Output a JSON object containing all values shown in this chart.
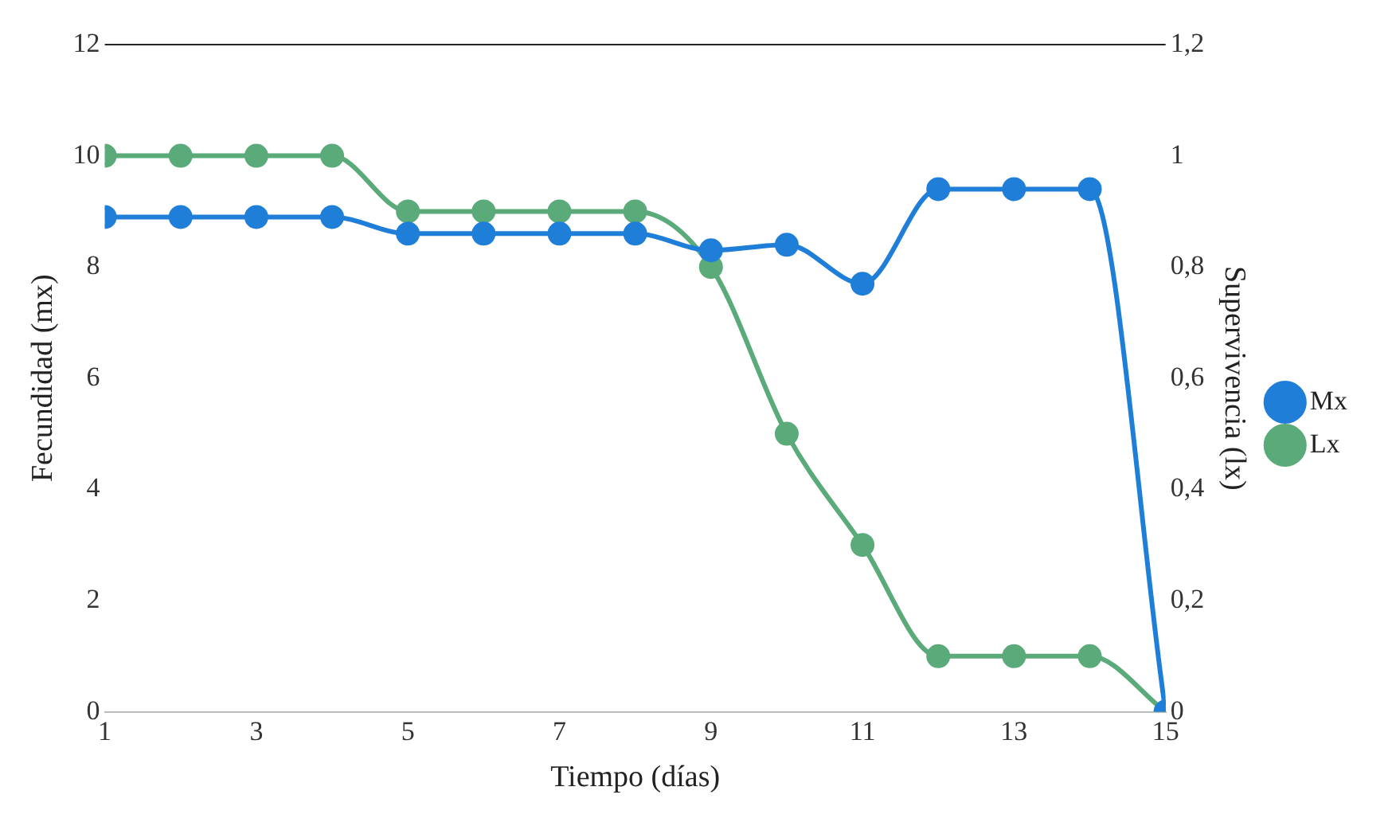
{
  "chart_data": {
    "type": "line",
    "xlabel": "Tiempo (días)",
    "ylabel": "Fecundidad (mx)",
    "y2label": "Supervivencia (lx)",
    "x": [
      1,
      2,
      3,
      4,
      5,
      6,
      7,
      8,
      9,
      10,
      11,
      12,
      13,
      14,
      15
    ],
    "series": [
      {
        "name": "Mx",
        "color": "#1f7fd8",
        "values": [
          8.9,
          8.9,
          8.9,
          8.9,
          8.6,
          8.6,
          8.6,
          8.6,
          8.3,
          8.4,
          7.7,
          9.4,
          9.4,
          9.4,
          0
        ]
      },
      {
        "name": "Lx",
        "color": "#5aaa7a",
        "axis": "y2",
        "values": [
          1,
          1,
          1,
          1,
          0.9,
          0.9,
          0.9,
          0.9,
          0.8,
          0.5,
          0.3,
          0.1,
          0.1,
          0.1,
          0
        ]
      }
    ],
    "xlim": [
      1,
      15
    ],
    "xticks": [
      1,
      3,
      5,
      7,
      9,
      11,
      13,
      15
    ],
    "ylim": [
      0,
      12
    ],
    "yticks": [
      0,
      2,
      4,
      6,
      8,
      10,
      12
    ],
    "y2lim": [
      0,
      1.2
    ],
    "y2ticks": [
      0,
      {
        "value": 0.2,
        "label": "0,2"
      },
      {
        "value": 0.4,
        "label": "0,4"
      },
      {
        "value": 0.6,
        "label": "0,6"
      },
      {
        "value": 0.8,
        "label": "0,8"
      },
      1,
      {
        "value": 1.2,
        "label": "1,2"
      }
    ],
    "legend": "right",
    "marker": "circle",
    "grid": false
  }
}
